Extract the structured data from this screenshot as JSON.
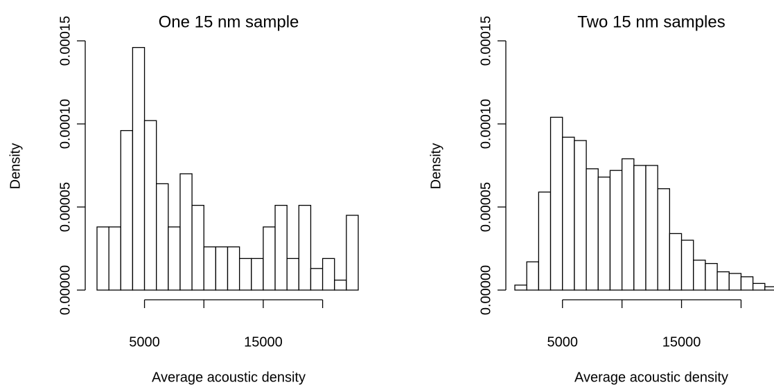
{
  "chart_data": [
    {
      "type": "histogram",
      "title": "One 15 nm sample",
      "x_label": "Average acoustic density",
      "y_label": "Density",
      "bins": [
        1000,
        2000,
        3000,
        4000,
        5000,
        6000,
        7000,
        8000,
        9000,
        10000,
        11000,
        12000,
        13000,
        14000,
        15000,
        16000,
        17000,
        18000,
        19000,
        20000,
        21000,
        22000,
        23000
      ],
      "values": [
        3.8e-05,
        3.8e-05,
        9.6e-05,
        0.000146,
        0.000102,
        6.4e-05,
        3.8e-05,
        7e-05,
        5.1e-05,
        2.6e-05,
        2.6e-05,
        2.6e-05,
        1.9e-05,
        1.9e-05,
        3.8e-05,
        5.1e-05,
        1.9e-05,
        5.1e-05,
        1.3e-05,
        1.9e-05,
        6e-06,
        4.5e-05
      ],
      "color": "#ffffff",
      "xlim": [
        1000,
        23000
      ],
      "ylim": [
        0,
        0.00015
      ],
      "xticks": [
        5000,
        {
          "value": 10000,
          "label": null
        },
        15000,
        {
          "value": 20000,
          "label": null
        }
      ],
      "yticks": [
        {
          "value": 0,
          "label": "0.00000"
        },
        {
          "value": 5e-05,
          "label": "0.00005"
        },
        {
          "value": 0.0001,
          "label": "0.00010"
        },
        {
          "value": 0.00015,
          "label": "0.00015"
        }
      ]
    },
    {
      "type": "histogram",
      "title": "Two 15 nm samples",
      "x_label": "Average acoustic density",
      "y_label": "Density",
      "bins": [
        1000,
        2000,
        3000,
        4000,
        5000,
        6000,
        7000,
        8000,
        9000,
        10000,
        11000,
        12000,
        13000,
        14000,
        15000,
        16000,
        17000,
        18000,
        19000,
        20000,
        21000,
        22000,
        23000
      ],
      "values": [
        3e-06,
        1.7e-05,
        5.9e-05,
        0.000104,
        9.2e-05,
        9e-05,
        7.3e-05,
        6.8e-05,
        7.2e-05,
        7.9e-05,
        7.5e-05,
        7.5e-05,
        6.1e-05,
        3.4e-05,
        3e-05,
        1.8e-05,
        1.6e-05,
        1.1e-05,
        1e-05,
        8e-06,
        4e-06,
        2e-06
      ],
      "color": "#ffffff",
      "xlim": [
        1000,
        23000
      ],
      "ylim": [
        0,
        0.00015
      ],
      "xticks": [
        5000,
        {
          "value": 10000,
          "label": null
        },
        15000,
        {
          "value": 20000,
          "label": null
        }
      ],
      "yticks": [
        {
          "value": 0,
          "label": "0.00000"
        },
        {
          "value": 5e-05,
          "label": "0.00005"
        },
        {
          "value": 0.0001,
          "label": "0.00010"
        },
        {
          "value": 0.00015,
          "label": "0.00015"
        }
      ]
    }
  ]
}
